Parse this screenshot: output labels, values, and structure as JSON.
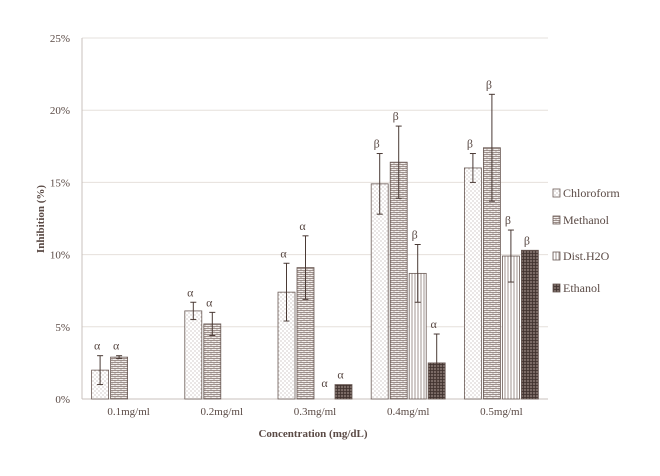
{
  "chart_data": {
    "type": "bar",
    "categories": [
      "0.1mg/ml",
      "0.2mg/ml",
      "0.3mg/ml",
      "0.4mg/ml",
      "0.5mg/ml"
    ],
    "xlabel": "Concentration (mg/dL)",
    "ylabel": "Inhibition (%)",
    "ylim": [
      0,
      25
    ],
    "yticks": [
      "0%",
      "5%",
      "10%",
      "15%",
      "20%",
      "25%"
    ],
    "grid": true,
    "legend_position": "right",
    "series": [
      {
        "name": "Chloroform",
        "pattern": "dots",
        "values": [
          2.0,
          6.1,
          7.4,
          14.9,
          16.0
        ],
        "errors": [
          1.0,
          0.6,
          2.0,
          2.1,
          1.0
        ],
        "labels": [
          "α",
          "α",
          "α",
          "β",
          "β"
        ]
      },
      {
        "name": "Methanol",
        "pattern": "brick",
        "values": [
          2.9,
          5.2,
          9.1,
          16.4,
          17.4
        ],
        "errors": [
          0.1,
          0.8,
          2.2,
          2.5,
          3.7
        ],
        "labels": [
          "α",
          "α",
          "α",
          "β",
          "β"
        ]
      },
      {
        "name": "Dist.H2O",
        "pattern": "vertical",
        "values": [
          null,
          null,
          null,
          8.7,
          9.9
        ],
        "errors": [
          null,
          null,
          null,
          2.0,
          1.8
        ],
        "labels": [
          null,
          null,
          "α",
          "β",
          "β"
        ]
      },
      {
        "name": "Ethanol",
        "pattern": "crosshatch",
        "values": [
          null,
          null,
          1.0,
          2.5,
          10.3
        ],
        "errors": [
          null,
          null,
          0,
          2.0,
          0
        ],
        "labels": [
          null,
          null,
          "α",
          "α",
          "β"
        ]
      }
    ]
  },
  "colors": {
    "axis": "#c8c0bc",
    "grid": "#e6e0dc",
    "bar_stroke": "#6a5a55",
    "pattern_ink": "#8a7a75",
    "text": "#5a4a45"
  }
}
